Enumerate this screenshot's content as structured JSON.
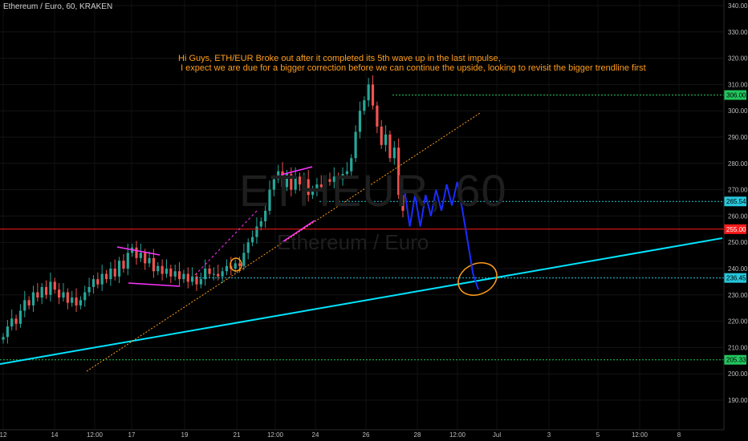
{
  "header": {
    "symbol_title": "Ethereum / Euro, 60, KRAKEN"
  },
  "watermark": {
    "line1": "ETHEUR, 60",
    "line2": "Ethereum / Euro"
  },
  "annotation": {
    "line1": "Hi Guys, ETH/EUR Broke out after it completed its 5th wave up in the last impulse,",
    "line2": "I expect we are due for a bigger correction before we can continue the upside, looking to revisit the bigger trendline first"
  },
  "colors": {
    "background": "#000000",
    "up_candle": "#26a69a",
    "down_candle": "#ef5350",
    "main_trendline": "#00e5ff",
    "minor_trendline": "#ff9d1a",
    "projection": "#1a2cff",
    "pennant": "#ff33ff",
    "level_green": "#22c55e",
    "level_red": "#ff1a1a",
    "level_cyan": "#26c6da"
  },
  "chart_data": {
    "type": "candlestick",
    "title": "",
    "xlabel": "",
    "ylabel": "",
    "ylim": [
      184,
      342
    ],
    "y_ticks": [
      190,
      200,
      210,
      220,
      230,
      240,
      250,
      260,
      270,
      280,
      290,
      300,
      310,
      320,
      330,
      340
    ],
    "x_ticks": [
      "12",
      "14",
      "12:00",
      "17",
      "19",
      "21",
      "12:00",
      "24",
      "26",
      "28",
      "12:00",
      "Jul",
      "3",
      "5",
      "12:00",
      "8"
    ],
    "price_levels": [
      {
        "label": "306.00",
        "value": 306.0,
        "color": "#22c55e"
      },
      {
        "label": "265.54",
        "value": 265.54,
        "color": "#26c6da"
      },
      {
        "label": "255.00",
        "value": 255.0,
        "color": "#ff1a1a"
      },
      {
        "label": "236.45",
        "value": 236.45,
        "color": "#26c6da"
      },
      {
        "label": "205.33",
        "value": 205.33,
        "color": "#22c55e"
      }
    ],
    "projection_path": [
      270,
      256,
      268,
      256,
      268,
      260,
      270,
      262,
      272,
      264,
      273,
      262,
      250,
      238,
      232
    ],
    "price_series": [
      214,
      218,
      221,
      219,
      224,
      228,
      226,
      231,
      229,
      233,
      230,
      235,
      232,
      229,
      231,
      227,
      229,
      226,
      228,
      231,
      233,
      236,
      234,
      238,
      236,
      240,
      237,
      243,
      240,
      246,
      248,
      244,
      246,
      242,
      244,
      239,
      241,
      238,
      240,
      237,
      239,
      236,
      238,
      235,
      237,
      234,
      236,
      240,
      238,
      238,
      237,
      239,
      241,
      240,
      242,
      241,
      246,
      250,
      252,
      256,
      258,
      262,
      270,
      274,
      277,
      271,
      276,
      270,
      275,
      272,
      274,
      268,
      270,
      272,
      271,
      274,
      273,
      275,
      274,
      276,
      277,
      282,
      292,
      300,
      304,
      310,
      302,
      294,
      287,
      291,
      282,
      286,
      268,
      262
    ]
  }
}
